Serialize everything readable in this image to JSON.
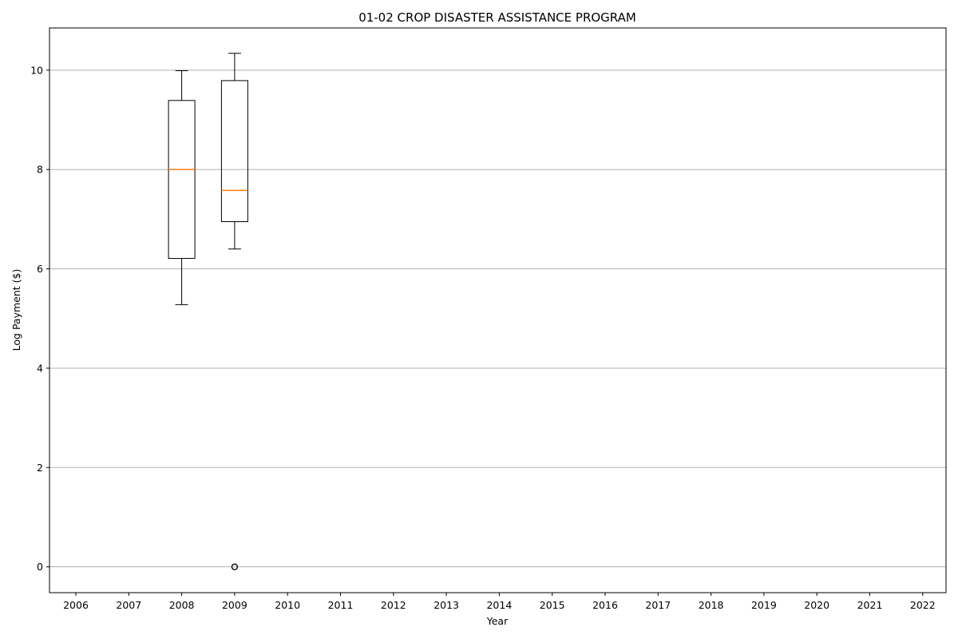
{
  "chart_data": {
    "type": "box",
    "title": "01-02 CROP DISASTER ASSISTANCE PROGRAM",
    "xlabel": "Year",
    "ylabel": "Log Payment ($)",
    "categories": [
      "2006",
      "2007",
      "2008",
      "2009",
      "2010",
      "2011",
      "2012",
      "2013",
      "2014",
      "2015",
      "2016",
      "2017",
      "2018",
      "2019",
      "2020",
      "2021",
      "2022"
    ],
    "yticks": [
      0,
      2,
      4,
      6,
      8,
      10
    ],
    "ylim": [
      -0.52,
      10.85
    ],
    "grid": "horizontal",
    "boxes": [
      {
        "category": "2008",
        "whisker_low": 5.28,
        "q1": 6.21,
        "median": 8.0,
        "q3": 9.39,
        "whisker_high": 9.99,
        "outliers": []
      },
      {
        "category": "2009",
        "whisker_low": 6.4,
        "q1": 6.95,
        "median": 7.58,
        "q3": 9.79,
        "whisker_high": 10.34,
        "outliers": [
          0,
          0
        ]
      }
    ],
    "colors": {
      "box": "#000000",
      "median": "#ff7f0e",
      "grid": "#b0b0b0"
    }
  }
}
